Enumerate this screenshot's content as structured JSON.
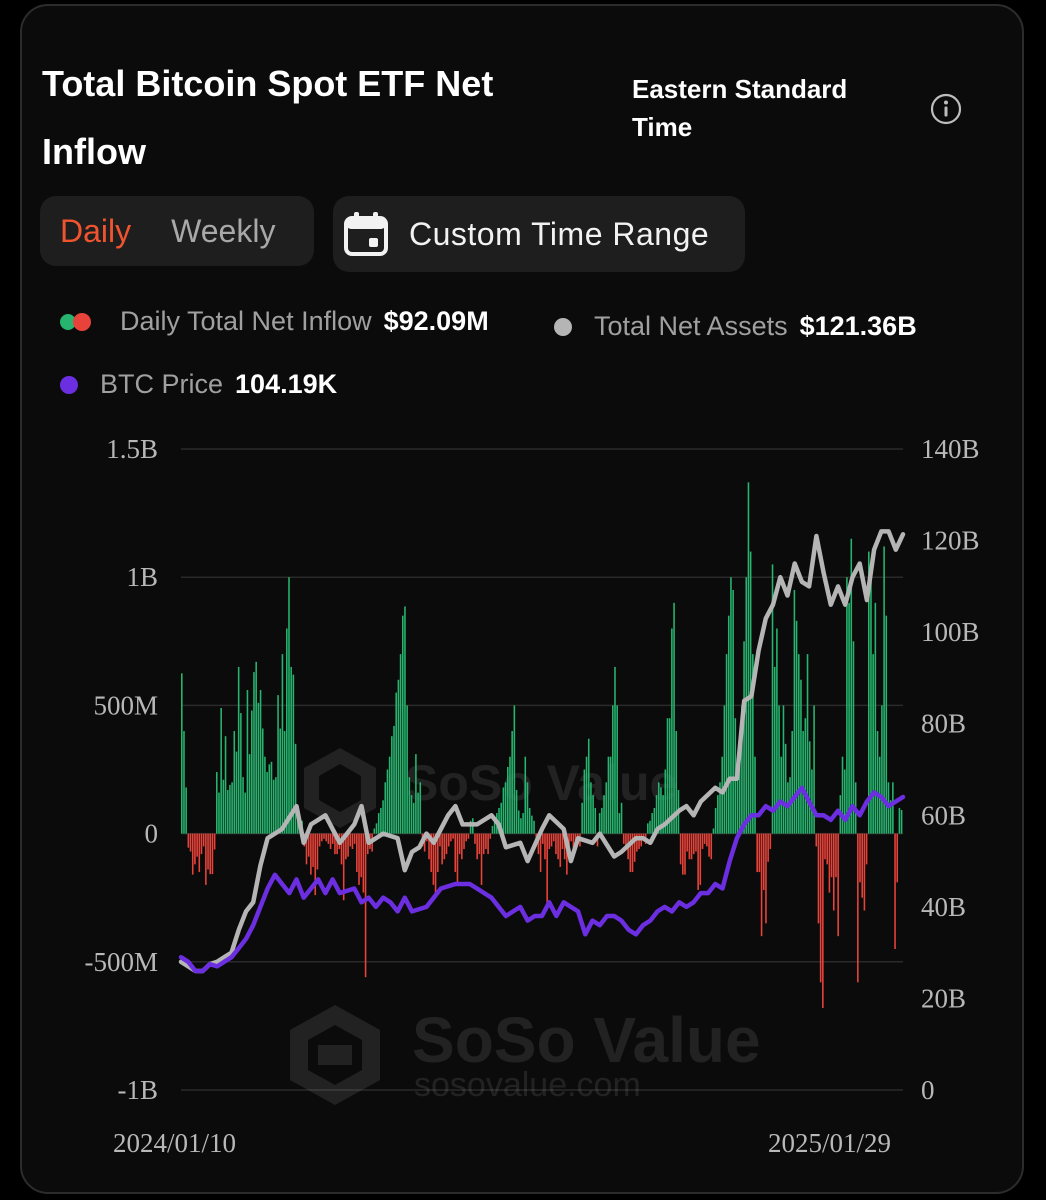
{
  "header": {
    "title": "Total Bitcoin Spot ETF Net Inflow",
    "timezone": "Eastern Standard Time",
    "info_icon": "info-circle-icon"
  },
  "controls": {
    "tabs": [
      {
        "label": "Daily",
        "active": true
      },
      {
        "label": "Weekly",
        "active": false
      }
    ],
    "range_button_label": "Custom Time Range",
    "range_button_icon": "calendar-icon"
  },
  "legend": {
    "inflow_label": "Daily Total Net Inflow",
    "inflow_value": "$92.09M",
    "assets_label": "Total Net Assets",
    "assets_value": "$121.36B",
    "price_label": "BTC Price",
    "price_value": "104.19K"
  },
  "watermark": {
    "brand": "SoSo Value",
    "url": "sosovalue.com"
  },
  "colors": {
    "inflow_positive": "#26b46e",
    "inflow_negative": "#e8433a",
    "total_net_assets": "#b5b5b5",
    "btc_price": "#6b2ee0",
    "active_tab": "#f0542f"
  },
  "chart_data": {
    "type": "bar",
    "x_start_label": "2024/01/10",
    "x_end_label": "2025/01/29",
    "left_axis": {
      "ticks": [
        "1.5B",
        "1B",
        "500M",
        "0",
        "-500M",
        "-1B"
      ],
      "range": [
        -1000000000,
        1500000000
      ]
    },
    "right_axis": {
      "ticks": [
        "140B",
        "120B",
        "100B",
        "80B",
        "60B",
        "40B",
        "20B",
        "0"
      ],
      "range": [
        0,
        140000000000
      ]
    },
    "grid": "horizontal",
    "series": [
      {
        "name": "Daily Total Net Inflow",
        "kind": "bar",
        "axis": "left",
        "unit": "USD M",
        "values": [
          625,
          400,
          180,
          -55,
          -70,
          -160,
          -120,
          -90,
          -150,
          -80,
          -50,
          -200,
          -140,
          -158,
          -158,
          -62,
          240,
          160,
          490,
          210,
          380,
          170,
          190,
          200,
          400,
          320,
          650,
          470,
          220,
          160,
          560,
          310,
          480,
          630,
          670,
          510,
          560,
          410,
          300,
          240,
          270,
          280,
          210,
          220,
          540,
          410,
          700,
          400,
          800,
          1000,
          650,
          620,
          350,
          50,
          20,
          50,
          -50,
          -120,
          -90,
          -160,
          -130,
          -240,
          -140,
          -50,
          -30,
          -20,
          -30,
          -40,
          -60,
          -40,
          -80,
          -80,
          -60,
          -120,
          -260,
          -100,
          -90,
          -50,
          -60,
          -40,
          -150,
          -200,
          -170,
          -230,
          -560,
          -80,
          -60,
          -70,
          20,
          40,
          80,
          100,
          130,
          200,
          250,
          300,
          380,
          420,
          550,
          600,
          700,
          850,
          886,
          500,
          220,
          150,
          120,
          310,
          160,
          200,
          -50,
          -70,
          -30,
          -100,
          -150,
          -200,
          -250,
          -150,
          -50,
          -120,
          -100,
          -80,
          -50,
          -30,
          -20,
          -150,
          -200,
          -80,
          -100,
          -60,
          -30,
          -20,
          50,
          60,
          -40,
          -100,
          -80,
          -200,
          -80,
          -60,
          -80,
          -20,
          30,
          50,
          80,
          100,
          120,
          180,
          200,
          260,
          300,
          400,
          500,
          170,
          90,
          60,
          80,
          300,
          200,
          100,
          70,
          50,
          -50,
          -80,
          -150,
          -40,
          -100,
          -280,
          -60,
          -50,
          -30,
          -80,
          -100,
          -130,
          -60,
          -100,
          -160,
          -50,
          -30,
          -60,
          -30,
          -40,
          -50,
          120,
          250,
          300,
          370,
          200,
          150,
          100,
          -50,
          80,
          100,
          150,
          200,
          300,
          300,
          500,
          650,
          500,
          80,
          120,
          -40,
          -60,
          -100,
          -150,
          -150,
          -110,
          -70,
          -60,
          -50,
          -30,
          -40,
          40,
          50,
          80,
          100,
          150,
          200,
          180,
          150,
          250,
          450,
          450,
          800,
          900,
          400,
          170,
          -120,
          -160,
          -160,
          -70,
          -100,
          -100,
          -80,
          -70,
          -220,
          -200,
          -60,
          -40,
          -50,
          -90,
          -100,
          20,
          100,
          150,
          200,
          300,
          500,
          700,
          850,
          1000,
          950,
          450,
          250,
          300,
          500,
          750,
          1000,
          1370,
          1100,
          700,
          300,
          -150,
          -150,
          -400,
          -220,
          -350,
          -110,
          -60,
          1050,
          650,
          800,
          500,
          300,
          500,
          350,
          200,
          220,
          400,
          950,
          830,
          700,
          600,
          400,
          450,
          700,
          360,
          250,
          500,
          -50,
          -350,
          -580,
          -680,
          -100,
          -120,
          -230,
          -170,
          -300,
          -170,
          -400,
          150,
          300,
          250,
          1000,
          900,
          1150,
          750,
          200,
          -580,
          -190,
          -250,
          -300,
          -120,
          1100,
          1000,
          700,
          900,
          400,
          300,
          500,
          1120,
          850,
          200,
          130,
          200,
          -450,
          -190,
          100,
          92
        ]
      },
      {
        "name": "Total Net Assets",
        "kind": "line",
        "axis": "right",
        "unit": "USD B",
        "points": [
          [
            0,
            28
          ],
          [
            0.01,
            27
          ],
          [
            0.02,
            26
          ],
          [
            0.03,
            26
          ],
          [
            0.04,
            27.5
          ],
          [
            0.05,
            28
          ],
          [
            0.06,
            29
          ],
          [
            0.07,
            30
          ],
          [
            0.08,
            35
          ],
          [
            0.09,
            39
          ],
          [
            0.1,
            41
          ],
          [
            0.11,
            49
          ],
          [
            0.12,
            55
          ],
          [
            0.13,
            56
          ],
          [
            0.14,
            57
          ],
          [
            0.16,
            62
          ],
          [
            0.17,
            54
          ],
          [
            0.18,
            58
          ],
          [
            0.2,
            60
          ],
          [
            0.22,
            54
          ],
          [
            0.24,
            58
          ],
          [
            0.25,
            62
          ],
          [
            0.26,
            54
          ],
          [
            0.28,
            56
          ],
          [
            0.3,
            55
          ],
          [
            0.31,
            48
          ],
          [
            0.32,
            52
          ],
          [
            0.33,
            53
          ],
          [
            0.34,
            56
          ],
          [
            0.35,
            54
          ],
          [
            0.37,
            60
          ],
          [
            0.38,
            62
          ],
          [
            0.39,
            58
          ],
          [
            0.41,
            58
          ],
          [
            0.43,
            60
          ],
          [
            0.44,
            58
          ],
          [
            0.45,
            53
          ],
          [
            0.47,
            54
          ],
          [
            0.48,
            50
          ],
          [
            0.5,
            57
          ],
          [
            0.51,
            60
          ],
          [
            0.53,
            57
          ],
          [
            0.54,
            50
          ],
          [
            0.55,
            55
          ],
          [
            0.57,
            54
          ],
          [
            0.58,
            56
          ],
          [
            0.6,
            51
          ],
          [
            0.61,
            52
          ],
          [
            0.63,
            55
          ],
          [
            0.64,
            55
          ],
          [
            0.65,
            54
          ],
          [
            0.66,
            57
          ],
          [
            0.67,
            58
          ],
          [
            0.69,
            61
          ],
          [
            0.7,
            62
          ],
          [
            0.71,
            60
          ],
          [
            0.72,
            63
          ],
          [
            0.74,
            66
          ],
          [
            0.75,
            65
          ],
          [
            0.76,
            68
          ],
          [
            0.77,
            68
          ],
          [
            0.78,
            85
          ],
          [
            0.79,
            86
          ],
          [
            0.8,
            96
          ],
          [
            0.81,
            103
          ],
          [
            0.82,
            106
          ],
          [
            0.83,
            112
          ],
          [
            0.84,
            108
          ],
          [
            0.85,
            115
          ],
          [
            0.86,
            111
          ],
          [
            0.87,
            110
          ],
          [
            0.88,
            121
          ],
          [
            0.89,
            113
          ],
          [
            0.9,
            106
          ],
          [
            0.91,
            110
          ],
          [
            0.92,
            106
          ],
          [
            0.93,
            112
          ],
          [
            0.94,
            115
          ],
          [
            0.95,
            107
          ],
          [
            0.96,
            118
          ],
          [
            0.97,
            122
          ],
          [
            0.98,
            122
          ],
          [
            0.99,
            118
          ],
          [
            1,
            121.36
          ]
        ]
      },
      {
        "name": "BTC Price",
        "kind": "line",
        "axis": "right",
        "unit": "USD K (scaled)",
        "points": [
          [
            0,
            29
          ],
          [
            0.01,
            28
          ],
          [
            0.02,
            26
          ],
          [
            0.03,
            26
          ],
          [
            0.04,
            27.5
          ],
          [
            0.05,
            27
          ],
          [
            0.07,
            29
          ],
          [
            0.08,
            31
          ],
          [
            0.09,
            33
          ],
          [
            0.1,
            36
          ],
          [
            0.11,
            40
          ],
          [
            0.12,
            44
          ],
          [
            0.13,
            47
          ],
          [
            0.14,
            45
          ],
          [
            0.15,
            43
          ],
          [
            0.16,
            46
          ],
          [
            0.17,
            42
          ],
          [
            0.18,
            44
          ],
          [
            0.19,
            46
          ],
          [
            0.2,
            43
          ],
          [
            0.21,
            46
          ],
          [
            0.22,
            43
          ],
          [
            0.24,
            44
          ],
          [
            0.25,
            41
          ],
          [
            0.26,
            42
          ],
          [
            0.27,
            40
          ],
          [
            0.28,
            42
          ],
          [
            0.29,
            41
          ],
          [
            0.3,
            39
          ],
          [
            0.31,
            42
          ],
          [
            0.32,
            39
          ],
          [
            0.34,
            40
          ],
          [
            0.35,
            42
          ],
          [
            0.36,
            44
          ],
          [
            0.38,
            45
          ],
          [
            0.4,
            45
          ],
          [
            0.41,
            44
          ],
          [
            0.42,
            43
          ],
          [
            0.43,
            42
          ],
          [
            0.44,
            40
          ],
          [
            0.45,
            38
          ],
          [
            0.46,
            39
          ],
          [
            0.47,
            40
          ],
          [
            0.48,
            37
          ],
          [
            0.49,
            38
          ],
          [
            0.5,
            38
          ],
          [
            0.51,
            41
          ],
          [
            0.52,
            38
          ],
          [
            0.53,
            41
          ],
          [
            0.54,
            40
          ],
          [
            0.55,
            39
          ],
          [
            0.56,
            34
          ],
          [
            0.57,
            37
          ],
          [
            0.58,
            36
          ],
          [
            0.59,
            38
          ],
          [
            0.6,
            38
          ],
          [
            0.61,
            37
          ],
          [
            0.62,
            35
          ],
          [
            0.63,
            34
          ],
          [
            0.64,
            36
          ],
          [
            0.65,
            37
          ],
          [
            0.66,
            39
          ],
          [
            0.67,
            40
          ],
          [
            0.68,
            39
          ],
          [
            0.69,
            41
          ],
          [
            0.7,
            40
          ],
          [
            0.71,
            41
          ],
          [
            0.72,
            43
          ],
          [
            0.73,
            43
          ],
          [
            0.74,
            45
          ],
          [
            0.75,
            44
          ],
          [
            0.76,
            50
          ],
          [
            0.77,
            55
          ],
          [
            0.78,
            58
          ],
          [
            0.79,
            60
          ],
          [
            0.8,
            60
          ],
          [
            0.81,
            62
          ],
          [
            0.82,
            61
          ],
          [
            0.83,
            63
          ],
          [
            0.84,
            62
          ],
          [
            0.85,
            64
          ],
          [
            0.86,
            66
          ],
          [
            0.87,
            63
          ],
          [
            0.88,
            60
          ],
          [
            0.89,
            60
          ],
          [
            0.9,
            59
          ],
          [
            0.91,
            61
          ],
          [
            0.92,
            59
          ],
          [
            0.93,
            62
          ],
          [
            0.94,
            60
          ],
          [
            0.95,
            63
          ],
          [
            0.96,
            65
          ],
          [
            0.97,
            64
          ],
          [
            0.98,
            62
          ],
          [
            0.99,
            63
          ],
          [
            1,
            64
          ]
        ]
      }
    ]
  }
}
